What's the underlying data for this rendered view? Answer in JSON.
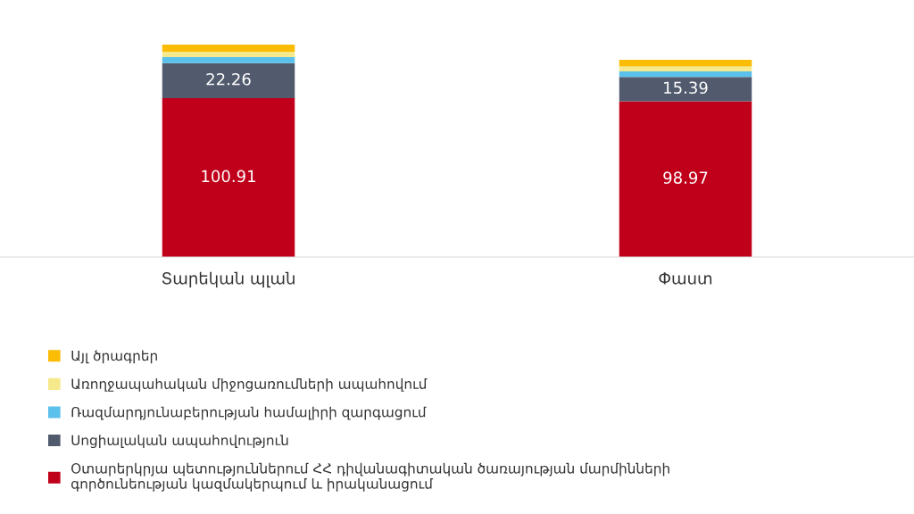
{
  "chart_data": {
    "type": "bar",
    "stacked": true,
    "categories": [
      "Տարեկան պլան",
      "Փաստ"
    ],
    "series": [
      {
        "name": "Օտարերկրյա պետություններում ՀՀ դիվանագիտական ծառայության մարմինների գործունեության կազմակերպում և իրականացում",
        "color": "#c0001a",
        "values": [
          100.91,
          98.97
        ],
        "value_labels": [
          "100.91",
          "98.97"
        ]
      },
      {
        "name": "Սոցիալական ապահովություն",
        "color": "#525b6e",
        "values": [
          22.26,
          15.39
        ],
        "value_labels": [
          "22.26",
          "15.39"
        ]
      },
      {
        "name": "Ռազմարդյունաբերության համալիրի զարգացում",
        "color": "#5bc0eb",
        "values": [
          3.8,
          3.5
        ]
      },
      {
        "name": "Առողջապահական միջոցառումների ապահովում",
        "color": "#f5e98c",
        "values": [
          3.4,
          3.2
        ]
      },
      {
        "name": "Այլ ծրագրեր",
        "color": "#fbbc05",
        "values": [
          4.5,
          4.2
        ]
      }
    ],
    "legend": "bottom left"
  }
}
